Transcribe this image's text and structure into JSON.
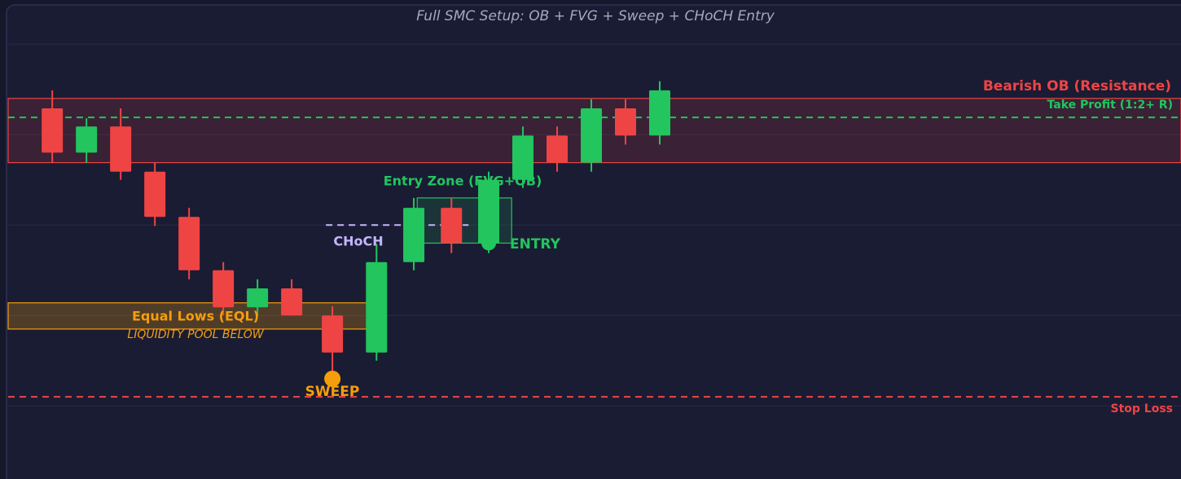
{
  "chart_data": {
    "type": "candlestick",
    "title": "Full SMC Setup: OB + FVG + Sweep + CHoCH Entry",
    "x": [
      1,
      2,
      3,
      4,
      5,
      6,
      7,
      8,
      9.19,
      10.48,
      11.57,
      12.67,
      13.76,
      14.76,
      15.76,
      16.76,
      17.76,
      18.76
    ],
    "open": [
      132.9,
      128.0,
      130.9,
      125.9,
      120.9,
      115.0,
      110.9,
      113.0,
      110.0,
      105.9,
      115.9,
      121.9,
      118.0,
      125.0,
      129.9,
      126.9,
      132.9,
      129.9
    ],
    "high": [
      134.9,
      131.8,
      132.9,
      126.9,
      121.9,
      115.9,
      114.0,
      114.0,
      111.0,
      117.9,
      123.0,
      123.0,
      125.9,
      130.9,
      130.9,
      133.9,
      133.9,
      135.9
    ],
    "low": [
      126.9,
      126.9,
      125.0,
      119.9,
      114.0,
      110.0,
      110.0,
      110.0,
      103.0,
      105.0,
      115.0,
      116.9,
      116.9,
      124.1,
      125.9,
      125.9,
      128.9,
      128.9
    ],
    "close": [
      128.0,
      130.9,
      125.9,
      120.9,
      115.0,
      110.9,
      113.0,
      110.0,
      105.9,
      115.9,
      121.9,
      118.0,
      125.0,
      129.9,
      126.9,
      132.9,
      129.9,
      134.9
    ],
    "up_color": "#22c55e",
    "down_color": "#ef4444",
    "xlim": [
      -0.29,
      34
    ],
    "ylim": [
      93,
      142
    ],
    "yticks": [
      100,
      110,
      120,
      130,
      140
    ],
    "grid": true,
    "zones": [
      {
        "label": "Bearish OB (Resistance)",
        "color": "#ef4444",
        "x": [
          -0.29,
          34
        ],
        "y": [
          126.9,
          134.0
        ]
      },
      {
        "label": "Equal Lows (EQL)",
        "sublabel": "LIQUIDITY POOL BELOW",
        "color": "#f59e0b",
        "x": [
          -0.29,
          10.2
        ],
        "y": [
          108.5,
          111.4
        ]
      },
      {
        "label": "Entry Zone (FVG+OB)",
        "color": "#22c55e",
        "x": [
          11.67,
          14.43
        ],
        "y": [
          118.0,
          123.0
        ]
      }
    ],
    "lines": [
      {
        "label": "Take Profit (1:2+ R)",
        "color": "#22c55e",
        "y": 131.9,
        "x": [
          -0.29,
          34
        ]
      },
      {
        "label": "Stop Loss",
        "color": "#ef4444",
        "y": 101.0,
        "x": [
          -0.29,
          34
        ]
      },
      {
        "label": "CHoCH",
        "color": "#c4b5fd",
        "y": 120.0,
        "x": [
          9.0,
          13.17
        ]
      }
    ],
    "markers": [
      {
        "label": "SWEEP",
        "color": "#f59e0b",
        "x": 9.19,
        "y": 103.0
      },
      {
        "label": "ENTRY",
        "color": "#22c55e",
        "x": 13.76,
        "y": 118.0
      }
    ]
  }
}
